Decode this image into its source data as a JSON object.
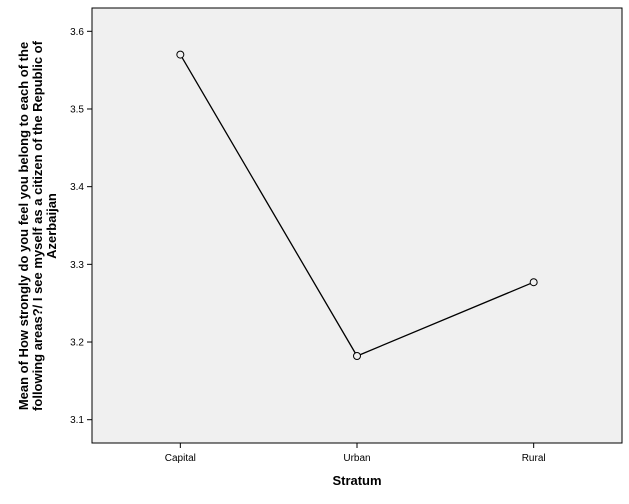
{
  "chart_data": {
    "type": "line",
    "title": "",
    "xlabel": "Stratum",
    "ylabel_lines": [
      "Mean of How strongly do you feel you belong to each of the",
      "following areas?/ I see myself as a citizen of the Republic of",
      "Azerbaijan"
    ],
    "categories": [
      "Capital",
      "Urban",
      "Rural"
    ],
    "series": [
      {
        "values": [
          3.57,
          3.182,
          3.277
        ]
      }
    ],
    "ylim": [
      3.07,
      3.63
    ],
    "yticks": [
      3.1,
      3.2,
      3.3,
      3.4,
      3.5,
      3.6
    ],
    "ytick_labels": [
      "3.1",
      "3.2",
      "3.3",
      "3.4",
      "3.5",
      "3.6"
    ],
    "grid": false,
    "legend": "none",
    "colors": {
      "plot_background": "#f0f0f0",
      "line": "#000000",
      "marker_fill": "#f0f0f0",
      "frame": "#000000"
    }
  }
}
